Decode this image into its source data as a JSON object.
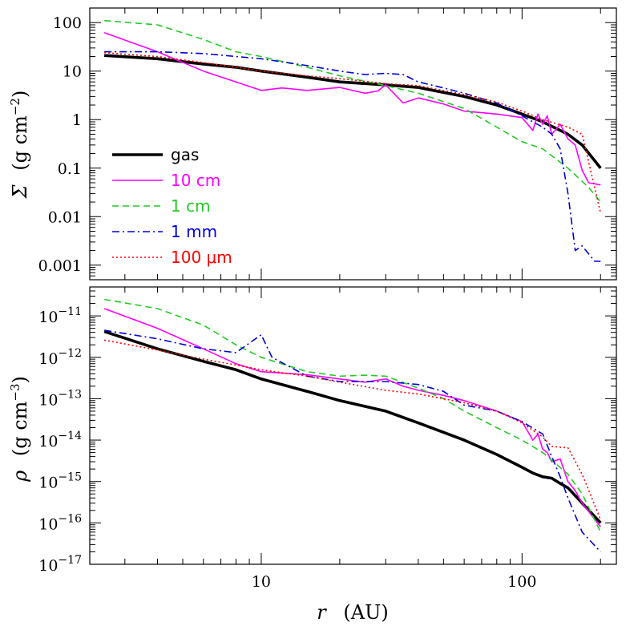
{
  "chart_data": [
    {
      "type": "line",
      "panel": "top",
      "ylabel_symbol": "Σ",
      "ylabel_unit_base": "g cm",
      "ylabel_unit_exp": "−2",
      "xscale": "log",
      "yscale": "log",
      "xlim": [
        2.2,
        230
      ],
      "ylim": [
        0.0005,
        200
      ],
      "y_tick_labels": [
        "100",
        "10",
        "1",
        "0.1",
        "0.01",
        "0.001"
      ],
      "y_tick_values": [
        100,
        10,
        1,
        0.1,
        0.01,
        0.001
      ],
      "legend_position": "left",
      "series": [
        {
          "name": "gas",
          "color": "#000000",
          "style": "solid-thick",
          "x": [
            2.5,
            4,
            6,
            8,
            10,
            15,
            20,
            30,
            40,
            60,
            80,
            100,
            120,
            150,
            170,
            200
          ],
          "y": [
            21,
            18,
            14,
            12,
            10,
            7.5,
            6,
            5.2,
            4.6,
            3,
            2,
            1.3,
            0.9,
            0.5,
            0.3,
            0.1
          ]
        },
        {
          "name": "10 cm",
          "color": "#ff00ff",
          "style": "solid",
          "x": [
            2.5,
            4,
            6,
            8,
            10,
            12,
            15,
            20,
            25,
            28,
            30,
            35,
            40,
            50,
            60,
            80,
            100,
            110,
            115,
            120,
            125,
            130,
            140,
            150,
            160,
            170,
            180,
            200
          ],
          "y": [
            62,
            25,
            10,
            6,
            4,
            4.5,
            4,
            4.6,
            3.5,
            3.9,
            5.2,
            2.2,
            2.8,
            2.1,
            1.5,
            1.3,
            1.1,
            0.6,
            1.3,
            0.8,
            1.2,
            0.5,
            0.8,
            0.4,
            0.3,
            0.09,
            0.05,
            0.045
          ]
        },
        {
          "name": "1 cm",
          "color": "#22cc22",
          "style": "dashed",
          "x": [
            2.5,
            4,
            6,
            8,
            10,
            15,
            20,
            30,
            40,
            60,
            80,
            100,
            120,
            150,
            180,
            200
          ],
          "y": [
            110,
            90,
            45,
            25,
            20,
            12,
            8,
            5,
            3.5,
            1.7,
            0.7,
            0.35,
            0.25,
            0.1,
            0.04,
            0.02
          ]
        },
        {
          "name": "1 mm",
          "color": "#0000dd",
          "style": "dashdot",
          "x": [
            2.5,
            4,
            6,
            8,
            10,
            15,
            20,
            25,
            30,
            35,
            40,
            50,
            60,
            80,
            100,
            110,
            120,
            130,
            140,
            150,
            160,
            170,
            180,
            190,
            200
          ],
          "y": [
            25,
            25,
            23,
            20,
            18,
            13,
            10,
            8.5,
            9,
            8.5,
            6,
            4.5,
            3.5,
            2.2,
            1.2,
            0.9,
            0.7,
            0.5,
            0.25,
            0.03,
            0.002,
            0.0025,
            0.0017,
            0.0012,
            0.0012
          ]
        },
        {
          "name": "100 μm",
          "color": "#ff0000",
          "style": "dotted",
          "x": [
            2.5,
            4,
            6,
            8,
            10,
            15,
            20,
            30,
            40,
            60,
            80,
            100,
            120,
            150,
            170,
            200
          ],
          "y": [
            24,
            20,
            15,
            12,
            10,
            8,
            7,
            5.5,
            5,
            3.3,
            2.3,
            1.5,
            1,
            0.7,
            0.5,
            0.012
          ]
        }
      ]
    },
    {
      "type": "line",
      "panel": "bottom",
      "ylabel_symbol": "ρ",
      "ylabel_unit_base": "g cm",
      "ylabel_unit_exp": "−3",
      "xlabel_symbol": "r",
      "xlabel_unit": "(AU)",
      "xscale": "log",
      "yscale": "log",
      "xlim": [
        2.2,
        230
      ],
      "ylim": [
        1e-17,
        5e-11
      ],
      "x_tick_labels": [
        "10",
        "100"
      ],
      "x_tick_values": [
        10,
        100
      ],
      "y_tick_base": "10",
      "y_tick_exponents": [
        "−11",
        "−12",
        "−13",
        "−14",
        "−15",
        "−16",
        "−17"
      ],
      "y_tick_values": [
        1e-11,
        1e-12,
        1e-13,
        1e-14,
        1e-15,
        1e-16,
        1e-17
      ],
      "series": [
        {
          "name": "gas",
          "color": "#000000",
          "style": "solid-thick",
          "x": [
            2.5,
            4,
            6,
            8,
            10,
            15,
            20,
            30,
            40,
            60,
            80,
            100,
            110,
            120,
            130,
            140,
            150,
            170,
            200
          ],
          "y": [
            4.2e-12,
            1.6e-12,
            8e-13,
            5e-13,
            3e-13,
            1.5e-13,
            9e-14,
            5e-14,
            2.6e-14,
            1e-14,
            4.5e-15,
            2.2e-15,
            1.6e-15,
            1.3e-15,
            1.2e-15,
            9e-16,
            7e-16,
            3e-16,
            1e-16
          ]
        },
        {
          "name": "10 cm",
          "color": "#ff00ff",
          "style": "solid",
          "x": [
            2.5,
            4,
            6,
            8,
            10,
            15,
            20,
            25,
            30,
            35,
            40,
            50,
            60,
            80,
            100,
            110,
            115,
            120,
            125,
            130,
            140,
            150,
            160,
            170,
            200
          ],
          "y": [
            1.5e-11,
            5e-12,
            1.6e-12,
            7e-13,
            4.5e-13,
            3.8e-13,
            3e-13,
            2.5e-13,
            3e-13,
            2e-13,
            1.6e-13,
            1.2e-13,
            9e-14,
            5e-14,
            2.8e-14,
            1e-14,
            1.4e-14,
            6e-15,
            5e-15,
            3e-15,
            3.5e-15,
            1e-15,
            6e-16,
            3e-16,
            8e-17
          ]
        },
        {
          "name": "1 cm",
          "color": "#22cc22",
          "style": "dashed",
          "x": [
            2.5,
            4,
            6,
            8,
            10,
            15,
            20,
            25,
            30,
            40,
            50,
            60,
            80,
            100,
            120,
            150,
            170,
            200
          ],
          "y": [
            2.5e-11,
            1.5e-11,
            6e-12,
            2e-12,
            1e-12,
            4.5e-13,
            3.5e-13,
            3.7e-13,
            3.5e-13,
            1.8e-13,
            1e-13,
            5e-14,
            2e-14,
            1e-14,
            5e-15,
            1.5e-15,
            5e-16,
            6e-17
          ]
        },
        {
          "name": "1 mm",
          "color": "#0000dd",
          "style": "dashdot",
          "x": [
            2.5,
            4,
            6,
            8,
            10,
            11,
            15,
            20,
            30,
            40,
            50,
            60,
            80,
            100,
            120,
            130,
            140,
            150,
            170,
            200
          ],
          "y": [
            4.5e-12,
            2.8e-12,
            1.6e-12,
            1.3e-12,
            3.5e-12,
            1e-12,
            3.5e-13,
            2.6e-13,
            2.6e-13,
            2.2e-13,
            1.5e-13,
            7e-14,
            5e-14,
            2.8e-14,
            1.4e-14,
            4e-15,
            1.3e-15,
            4e-16,
            6e-17,
            2e-17
          ]
        },
        {
          "name": "100 μm",
          "color": "#ff0000",
          "style": "dotted",
          "x": [
            2.5,
            4,
            6,
            8,
            10,
            15,
            20,
            30,
            40,
            60,
            80,
            100,
            120,
            130,
            150,
            170,
            200
          ],
          "y": [
            2.6e-12,
            1.5e-12,
            9e-13,
            6.5e-13,
            5e-13,
            3.5e-13,
            2.5e-13,
            1.6e-13,
            1.3e-13,
            8e-14,
            5e-14,
            2.6e-14,
            1.2e-14,
            7e-15,
            6.5e-15,
            1.5e-15,
            1.2e-16
          ]
        }
      ]
    }
  ]
}
